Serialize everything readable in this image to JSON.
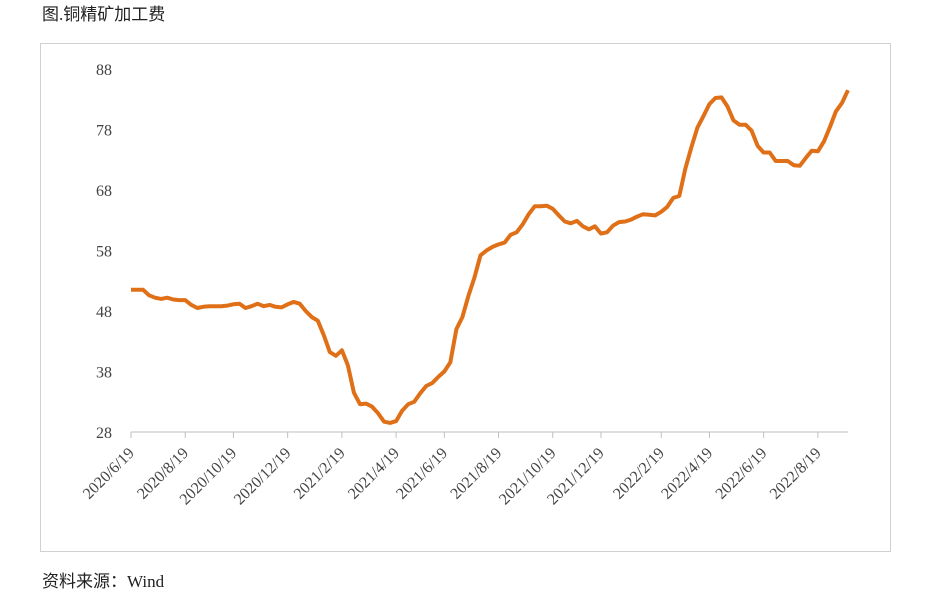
{
  "chart_data": {
    "type": "line",
    "title": "图.铜精矿加工费",
    "source": "资料来源：Wind",
    "categories": [
      "2020/6/19",
      null,
      null,
      null,
      null,
      null,
      null,
      null,
      null,
      "2020/8/19",
      null,
      null,
      null,
      null,
      null,
      null,
      null,
      "2020/10/19",
      null,
      null,
      null,
      null,
      null,
      null,
      null,
      null,
      "2020/12/19",
      null,
      null,
      null,
      null,
      null,
      null,
      null,
      null,
      "2021/2/19",
      null,
      null,
      null,
      null,
      null,
      null,
      null,
      null,
      "2021/4/19",
      null,
      null,
      null,
      null,
      null,
      null,
      null,
      "2021/6/19",
      null,
      null,
      null,
      null,
      null,
      null,
      null,
      null,
      "2021/8/19",
      null,
      null,
      null,
      null,
      null,
      null,
      null,
      null,
      "2021/10/19",
      null,
      null,
      null,
      null,
      null,
      null,
      null,
      "2021/12/19",
      null,
      null,
      null,
      null,
      null,
      null,
      null,
      null,
      null,
      "2022/2/19",
      null,
      null,
      null,
      null,
      null,
      null,
      null,
      "2022/4/19",
      null,
      null,
      null,
      null,
      null,
      null,
      null,
      null,
      "2022/6/19",
      null,
      null,
      null,
      null,
      null,
      null,
      null,
      null,
      "2022/8/19",
      null,
      null,
      null,
      null,
      null
    ],
    "values": [
      51.5,
      51.5,
      51.5,
      50.6,
      50.2,
      50.0,
      50.2,
      49.9,
      49.8,
      49.8,
      49.0,
      48.5,
      48.7,
      48.8,
      48.8,
      48.8,
      48.9,
      49.1,
      49.2,
      48.5,
      48.8,
      49.2,
      48.8,
      49.0,
      48.7,
      48.6,
      49.1,
      49.5,
      49.2,
      48.0,
      47.0,
      46.4,
      44.0,
      41.2,
      40.6,
      41.5,
      39.0,
      34.5,
      32.6,
      32.7,
      32.2,
      31.1,
      29.7,
      29.5,
      29.8,
      31.5,
      32.6,
      33.0,
      34.4,
      35.6,
      36.1,
      37.1,
      38.0,
      39.5,
      45.0,
      47.0,
      50.5,
      53.5,
      57.2,
      58.0,
      58.6,
      59.0,
      59.3,
      60.6,
      61.0,
      62.3,
      64.0,
      65.3,
      65.3,
      65.4,
      64.9,
      63.8,
      62.8,
      62.5,
      62.9,
      62.0,
      61.5,
      62.0,
      60.8,
      61.0,
      62.1,
      62.7,
      62.8,
      63.1,
      63.6,
      64.0,
      63.9,
      63.8,
      64.4,
      65.2,
      66.7,
      67.0,
      71.5,
      75.0,
      78.3,
      80.2,
      82.2,
      83.2,
      83.3,
      81.8,
      79.5,
      78.8,
      78.8,
      77.8,
      75.3,
      74.2,
      74.2,
      72.8,
      72.8,
      72.8,
      72.1,
      72.0,
      73.3,
      74.5,
      74.4,
      76.0,
      78.4,
      81.0,
      82.4,
      84.5
    ],
    "color": "#e07018",
    "ylim": [
      28,
      88
    ],
    "yticks": [
      28,
      38,
      48,
      58,
      68,
      78,
      88
    ]
  }
}
